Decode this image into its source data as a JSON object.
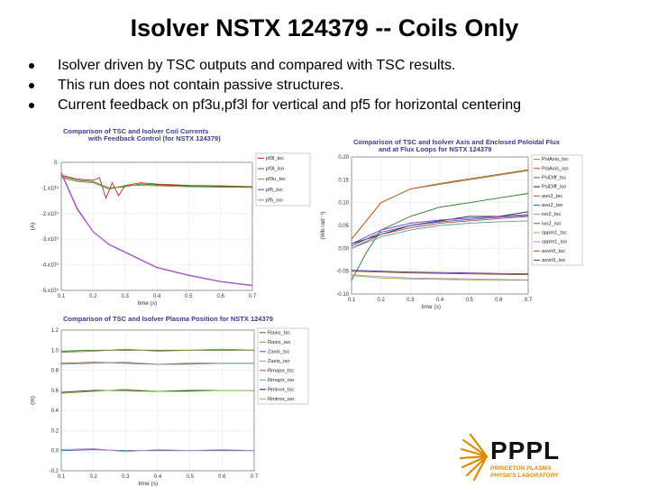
{
  "slide": {
    "title": "Isolver NSTX 124379 -- Coils Only",
    "bullets": [
      "Isolver driven by TSC outputs and compared with TSC results.",
      "This run does not contain passive structures.",
      "Current feedback on pf3u,pf3l for vertical and pf5 for horizontal centering"
    ]
  },
  "logo": {
    "name": "PPPL",
    "sub1": "PRINCETON PLASMA",
    "sub2": "PHYSICS LABORATORY",
    "color": "#e08a00"
  },
  "chart_data": [
    {
      "type": "line",
      "title": "Comparison of TSC and Isolver Coil Currents",
      "subtitle": "with Feedback Control (for NSTX 124379)",
      "xlabel": "time (s)",
      "ylabel": "(A)",
      "xlim": [
        0.1,
        0.7
      ],
      "ylim": [
        -500000,
        0
      ],
      "x_ticks": [
        "0.1",
        "0.2",
        "0.3",
        "0.4",
        "0.5",
        "0.6",
        "0.7"
      ],
      "y_ticks": [
        {
          "value": 0,
          "label": "0."
        },
        {
          "value": -100000,
          "label": "-1.x10⁵"
        },
        {
          "value": -200000,
          "label": "-2.x10⁵"
        },
        {
          "value": -300000,
          "label": "-3.x10⁵"
        },
        {
          "value": -400000,
          "label": "-4.x10⁵"
        },
        {
          "value": -500000,
          "label": "-5.x10⁵"
        }
      ],
      "grid": true,
      "legend": "right",
      "series": [
        {
          "name": "pf3l_tsc",
          "color": "#cc2222",
          "x": [
            0.1,
            0.15,
            0.2,
            0.22,
            0.24,
            0.26,
            0.28,
            0.3,
            0.35,
            0.4,
            0.5,
            0.6,
            0.7
          ],
          "y": [
            -50000,
            -65000,
            -70000,
            -60000,
            -140000,
            -80000,
            -130000,
            -90000,
            -80000,
            -85000,
            -90000,
            -92000,
            -95000
          ]
        },
        {
          "name": "pf3l_iso",
          "color": "#2a7a2a",
          "x": [
            0.1,
            0.15,
            0.2,
            0.25,
            0.3,
            0.35,
            0.4,
            0.5,
            0.6,
            0.7
          ],
          "y": [
            -55000,
            -70000,
            -75000,
            -100000,
            -95000,
            -85000,
            -88000,
            -92000,
            -94000,
            -96000
          ]
        },
        {
          "name": "pf3u_tsc",
          "color": "#8a8a2a",
          "x": [
            0.1,
            0.15,
            0.2,
            0.25,
            0.3,
            0.35,
            0.4,
            0.5,
            0.6,
            0.7
          ],
          "y": [
            -60000,
            -75000,
            -80000,
            -105000,
            -90000,
            -90000,
            -92000,
            -95000,
            -97000,
            -98000
          ]
        },
        {
          "name": "pf5_tsc",
          "color": "#7a3ab5",
          "x": [
            0.1,
            0.15,
            0.2,
            0.25,
            0.3,
            0.35,
            0.4,
            0.5,
            0.6,
            0.7
          ],
          "y": [
            -40000,
            -180000,
            -270000,
            -320000,
            -350000,
            -380000,
            -410000,
            -440000,
            -465000,
            -480000
          ]
        },
        {
          "name": "pf5_iso",
          "color": "#c060d0",
          "x": [
            0.1,
            0.15,
            0.2,
            0.25,
            0.3,
            0.35,
            0.4,
            0.5,
            0.6,
            0.7
          ],
          "y": [
            -45000,
            -185000,
            -272000,
            -322000,
            -352000,
            -382000,
            -412000,
            -442000,
            -467000,
            -482000
          ]
        }
      ]
    },
    {
      "type": "line",
      "title": "Comparison of TSC and Isolver Axis and Enclosed Poloidal Flux",
      "subtitle": "and at Flux Loops for NSTX 124379",
      "xlabel": "time (s)",
      "ylabel": "(Wb rad⁻¹)",
      "xlim": [
        0.1,
        0.7
      ],
      "ylim": [
        -0.1,
        0.2
      ],
      "x_ticks": [
        "0.1",
        "0.2",
        "0.3",
        "0.4",
        "0.5",
        "0.6",
        "0.7"
      ],
      "y_ticks": [
        {
          "value": 0.2,
          "label": "0.20"
        },
        {
          "value": 0.15,
          "label": "0.15"
        },
        {
          "value": 0.1,
          "label": "0.10"
        },
        {
          "value": 0.05,
          "label": "0.05"
        },
        {
          "value": 0,
          "label": "0.00"
        },
        {
          "value": -0.05,
          "label": "-0.05"
        },
        {
          "value": -0.1,
          "label": "-0.10"
        }
      ],
      "grid": true,
      "legend": "right",
      "series": [
        {
          "name": "PsiAxis_tsc",
          "color": "#8a8a2a",
          "x": [
            0.1,
            0.2,
            0.3,
            0.4,
            0.5,
            0.6,
            0.7
          ],
          "y": [
            0.02,
            0.1,
            0.13,
            0.14,
            0.15,
            0.16,
            0.17
          ]
        },
        {
          "name": "PsiAxis_iso",
          "color": "#c05020",
          "x": [
            0.1,
            0.2,
            0.3,
            0.4,
            0.5,
            0.6,
            0.7
          ],
          "y": [
            0.02,
            0.1,
            0.13,
            0.142,
            0.152,
            0.162,
            0.172
          ]
        },
        {
          "name": "PsiDiff_tsc",
          "color": "#2a7a2a",
          "x": [
            0.1,
            0.15,
            0.2,
            0.3,
            0.4,
            0.5,
            0.6,
            0.7
          ],
          "y": [
            -0.07,
            -0.01,
            0.04,
            0.07,
            0.09,
            0.1,
            0.11,
            0.12
          ]
        },
        {
          "name": "PsiDiff_iso",
          "color": "#222222",
          "x": [
            0.1,
            0.15,
            0.2,
            0.3,
            0.4,
            0.5,
            0.6,
            0.7
          ],
          "y": [
            0.01,
            0.02,
            0.03,
            0.05,
            0.06,
            0.07,
            0.07,
            0.08
          ]
        },
        {
          "name": "avo2_tsc",
          "color": "#d04040",
          "x": [
            0.1,
            0.2,
            0.3,
            0.4,
            0.5,
            0.6,
            0.7
          ],
          "y": [
            0.0,
            0.03,
            0.045,
            0.055,
            0.06,
            0.065,
            0.07
          ]
        },
        {
          "name": "avo2_iso",
          "color": "#3060c0",
          "x": [
            0.1,
            0.2,
            0.3,
            0.4,
            0.5,
            0.6,
            0.7
          ],
          "y": [
            0.005,
            0.035,
            0.05,
            0.058,
            0.063,
            0.068,
            0.072
          ]
        },
        {
          "name": "ivo2_tsc",
          "color": "#60a0a0",
          "x": [
            0.1,
            0.2,
            0.3,
            0.4,
            0.5,
            0.6,
            0.7
          ],
          "y": [
            0.0,
            0.025,
            0.04,
            0.05,
            0.055,
            0.058,
            0.06
          ]
        },
        {
          "name": "ivo2_iso",
          "color": "#8040c0",
          "x": [
            0.1,
            0.2,
            0.3,
            0.4,
            0.5,
            0.6,
            0.7
          ],
          "y": [
            0.01,
            0.04,
            0.055,
            0.062,
            0.066,
            0.07,
            0.074
          ]
        },
        {
          "name": "sppm1_tsc",
          "color": "#80c040",
          "x": [
            0.1,
            0.2,
            0.3,
            0.4,
            0.5,
            0.6,
            0.7
          ],
          "y": [
            -0.06,
            -0.065,
            -0.067,
            -0.068,
            -0.069,
            -0.07,
            -0.07
          ]
        },
        {
          "name": "sppm1_iso",
          "color": "#c080c0",
          "x": [
            0.1,
            0.2,
            0.3,
            0.4,
            0.5,
            0.6,
            0.7
          ],
          "y": [
            -0.058,
            -0.062,
            -0.065,
            -0.066,
            -0.067,
            -0.068,
            -0.069
          ]
        },
        {
          "name": "avvn5_tsc",
          "color": "#a05020",
          "x": [
            0.1,
            0.2,
            0.3,
            0.4,
            0.5,
            0.6,
            0.7
          ],
          "y": [
            -0.05,
            -0.052,
            -0.054,
            -0.055,
            -0.056,
            -0.057,
            -0.058
          ]
        },
        {
          "name": "avvn5_iso",
          "color": "#4040a0",
          "x": [
            0.1,
            0.2,
            0.3,
            0.4,
            0.5,
            0.6,
            0.7
          ],
          "y": [
            -0.048,
            -0.05,
            -0.052,
            -0.053,
            -0.054,
            -0.055,
            -0.056
          ]
        }
      ]
    },
    {
      "type": "line",
      "title": "Comparison of TSC and Isolver Plasma Position for NSTX 124379",
      "subtitle": "",
      "xlabel": "time (s)",
      "ylabel": "(m)",
      "xlim": [
        0.1,
        0.7
      ],
      "ylim": [
        -0.2,
        1.2
      ],
      "x_ticks": [
        "0.1",
        "0.2",
        "0.3",
        "0.4",
        "0.5",
        "0.6",
        "0.7"
      ],
      "y_ticks": [
        {
          "value": 1.2,
          "label": "1.2"
        },
        {
          "value": 1.0,
          "label": "1.0"
        },
        {
          "value": 0.8,
          "label": "0.8"
        },
        {
          "value": 0.6,
          "label": "0.6"
        },
        {
          "value": 0.4,
          "label": "0.4"
        },
        {
          "value": 0.2,
          "label": "0.2"
        },
        {
          "value": 0.0,
          "label": "0.0"
        },
        {
          "value": -0.2,
          "label": "-0.2"
        }
      ],
      "grid": true,
      "legend": "right",
      "series": [
        {
          "name": "Raxis_tsc",
          "color": "#2a7a2a",
          "x": [
            0.1,
            0.2,
            0.3,
            0.4,
            0.5,
            0.6,
            0.7
          ],
          "y": [
            0.99,
            1.0,
            1.0,
            1.0,
            1.0,
            1.0,
            1.0
          ]
        },
        {
          "name": "Raxis_iso",
          "color": "#8a8a2a",
          "x": [
            0.1,
            0.2,
            0.3,
            0.4,
            0.5,
            0.6,
            0.7
          ],
          "y": [
            0.98,
            0.99,
            1.01,
            0.99,
            1.0,
            1.01,
            1.0
          ]
        },
        {
          "name": "Zaxis_tsc",
          "color": "#3060c0",
          "x": [
            0.1,
            0.2,
            0.3,
            0.4,
            0.5,
            0.6,
            0.7
          ],
          "y": [
            0.0,
            0.01,
            0.0,
            0.0,
            0.0,
            0.0,
            0.0
          ]
        },
        {
          "name": "Zaxis_iso",
          "color": "#c080c0",
          "x": [
            0.1,
            0.2,
            0.3,
            0.4,
            0.5,
            0.6,
            0.7
          ],
          "y": [
            0.01,
            0.02,
            -0.01,
            0.01,
            0.0,
            0.01,
            0.0
          ]
        },
        {
          "name": "Rmajor_tsc",
          "color": "#a05020",
          "x": [
            0.1,
            0.2,
            0.3,
            0.4,
            0.5,
            0.6,
            0.7
          ],
          "y": [
            0.87,
            0.88,
            0.87,
            0.86,
            0.87,
            0.87,
            0.87
          ]
        },
        {
          "name": "Rmajor_iso",
          "color": "#60a0a0",
          "x": [
            0.1,
            0.2,
            0.3,
            0.4,
            0.5,
            0.6,
            0.7
          ],
          "y": [
            0.86,
            0.87,
            0.88,
            0.86,
            0.86,
            0.87,
            0.87
          ]
        },
        {
          "name": "Rminor_tsc",
          "color": "#222222",
          "x": [
            0.1,
            0.2,
            0.3,
            0.4,
            0.5,
            0.6,
            0.7
          ],
          "y": [
            0.58,
            0.6,
            0.6,
            0.59,
            0.6,
            0.6,
            0.6
          ]
        },
        {
          "name": "Rminor_iso",
          "color": "#80c040",
          "x": [
            0.1,
            0.2,
            0.3,
            0.4,
            0.5,
            0.6,
            0.7
          ],
          "y": [
            0.57,
            0.59,
            0.61,
            0.59,
            0.59,
            0.6,
            0.6
          ]
        }
      ]
    }
  ]
}
